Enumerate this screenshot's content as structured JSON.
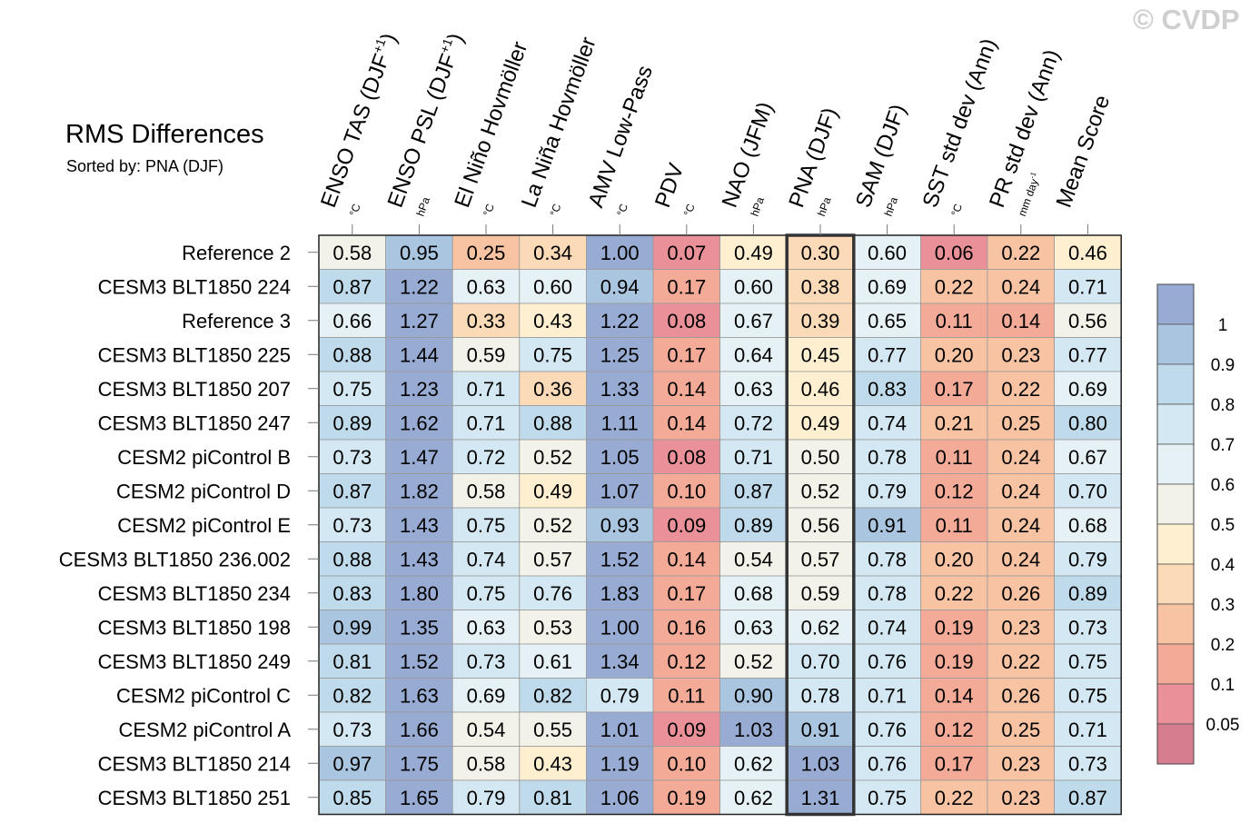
{
  "watermark": "© CVDP",
  "chart_data": {
    "type": "heatmap",
    "title": "RMS Differences",
    "subtitle": "Sorted by: PNA (DJF)",
    "columns": [
      {
        "label": "ENSO TAS (DJF",
        "sup": "+1",
        "close": ")",
        "unit": "°C"
      },
      {
        "label": "ENSO PSL (DJF",
        "sup": "+1",
        "close": ")",
        "unit": "hPa"
      },
      {
        "label": "El Niño Hovmöller",
        "unit": "°C"
      },
      {
        "label": "La Niña Hovmöller",
        "unit": "°C"
      },
      {
        "label": "AMV Low-Pass",
        "unit": "°C"
      },
      {
        "label": "PDV",
        "unit": "°C"
      },
      {
        "label": "NAO (JFM)",
        "unit": "hPa"
      },
      {
        "label": "PNA (DJF)",
        "unit": "hPa"
      },
      {
        "label": "SAM (DJF)",
        "unit": "hPa"
      },
      {
        "label": "SST std dev (Ann)",
        "unit": "°C"
      },
      {
        "label": "PR std dev (Ann)",
        "unit": "mm day",
        "unit_sup": "-1"
      },
      {
        "label": "Mean Score",
        "unit": ""
      }
    ],
    "highlight_column": 7,
    "rows": [
      {
        "name": "Reference 2",
        "values": [
          0.58,
          0.95,
          0.25,
          0.34,
          1.0,
          0.07,
          0.49,
          0.3,
          0.6,
          0.06,
          0.22,
          0.46
        ]
      },
      {
        "name": "CESM3 BLT1850 224",
        "values": [
          0.87,
          1.22,
          0.63,
          0.6,
          0.94,
          0.17,
          0.6,
          0.38,
          0.69,
          0.22,
          0.24,
          0.71
        ]
      },
      {
        "name": "Reference 3",
        "values": [
          0.66,
          1.27,
          0.33,
          0.43,
          1.22,
          0.08,
          0.67,
          0.39,
          0.65,
          0.11,
          0.14,
          0.56
        ]
      },
      {
        "name": "CESM3 BLT1850 225",
        "values": [
          0.88,
          1.44,
          0.59,
          0.75,
          1.25,
          0.17,
          0.64,
          0.45,
          0.77,
          0.2,
          0.23,
          0.77
        ]
      },
      {
        "name": "CESM3 BLT1850 207",
        "values": [
          0.75,
          1.23,
          0.71,
          0.36,
          1.33,
          0.14,
          0.63,
          0.46,
          0.83,
          0.17,
          0.22,
          0.69
        ]
      },
      {
        "name": "CESM3 BLT1850 247",
        "values": [
          0.89,
          1.62,
          0.71,
          0.88,
          1.11,
          0.14,
          0.72,
          0.49,
          0.74,
          0.21,
          0.25,
          0.8
        ]
      },
      {
        "name": "CESM2 piControl B",
        "values": [
          0.73,
          1.47,
          0.72,
          0.52,
          1.05,
          0.08,
          0.71,
          0.5,
          0.78,
          0.11,
          0.24,
          0.67
        ]
      },
      {
        "name": "CESM2 piControl D",
        "values": [
          0.87,
          1.82,
          0.58,
          0.49,
          1.07,
          0.1,
          0.87,
          0.52,
          0.79,
          0.12,
          0.24,
          0.7
        ]
      },
      {
        "name": "CESM2 piControl E",
        "values": [
          0.73,
          1.43,
          0.75,
          0.52,
          0.93,
          0.09,
          0.89,
          0.56,
          0.91,
          0.11,
          0.24,
          0.68
        ]
      },
      {
        "name": "CESM3 BLT1850 236.002",
        "values": [
          0.88,
          1.43,
          0.74,
          0.57,
          1.52,
          0.14,
          0.54,
          0.57,
          0.78,
          0.2,
          0.24,
          0.79
        ]
      },
      {
        "name": "CESM3 BLT1850 234",
        "values": [
          0.83,
          1.8,
          0.75,
          0.76,
          1.83,
          0.17,
          0.68,
          0.59,
          0.78,
          0.22,
          0.26,
          0.89
        ]
      },
      {
        "name": "CESM3 BLT1850 198",
        "values": [
          0.99,
          1.35,
          0.63,
          0.53,
          1.0,
          0.16,
          0.63,
          0.62,
          0.74,
          0.19,
          0.23,
          0.73
        ]
      },
      {
        "name": "CESM3 BLT1850 249",
        "values": [
          0.81,
          1.52,
          0.73,
          0.61,
          1.34,
          0.12,
          0.52,
          0.7,
          0.76,
          0.19,
          0.22,
          0.75
        ]
      },
      {
        "name": "CESM2 piControl C",
        "values": [
          0.82,
          1.63,
          0.69,
          0.82,
          0.79,
          0.11,
          0.9,
          0.78,
          0.71,
          0.14,
          0.26,
          0.75
        ]
      },
      {
        "name": "CESM2 piControl A",
        "values": [
          0.73,
          1.66,
          0.54,
          0.55,
          1.01,
          0.09,
          1.03,
          0.91,
          0.76,
          0.12,
          0.25,
          0.71
        ]
      },
      {
        "name": "CESM3 BLT1850 214",
        "values": [
          0.97,
          1.75,
          0.58,
          0.43,
          1.19,
          0.1,
          0.62,
          1.03,
          0.76,
          0.17,
          0.23,
          0.73
        ]
      },
      {
        "name": "CESM3 BLT1850 251",
        "values": [
          0.85,
          1.65,
          0.79,
          0.81,
          1.06,
          0.19,
          0.62,
          1.31,
          0.75,
          0.22,
          0.23,
          0.87
        ]
      }
    ],
    "colorbar": {
      "levels": [
        0.05,
        0.1,
        0.2,
        0.3,
        0.4,
        0.5,
        0.6,
        0.7,
        0.8,
        0.9,
        1
      ],
      "labels": [
        "1",
        "0.9",
        "0.8",
        "0.7",
        "0.6",
        "0.5",
        "0.4",
        "0.3",
        "0.2",
        "0.1",
        "0.05"
      ],
      "colors": [
        "#d67e8f",
        "#e99098",
        "#f3aa97",
        "#f8c3a3",
        "#fbdab8",
        "#fdefd0",
        "#f3f2e8",
        "#e6f1f6",
        "#d3e8f2",
        "#bfdaea",
        "#aac5df",
        "#97abd3"
      ]
    }
  }
}
